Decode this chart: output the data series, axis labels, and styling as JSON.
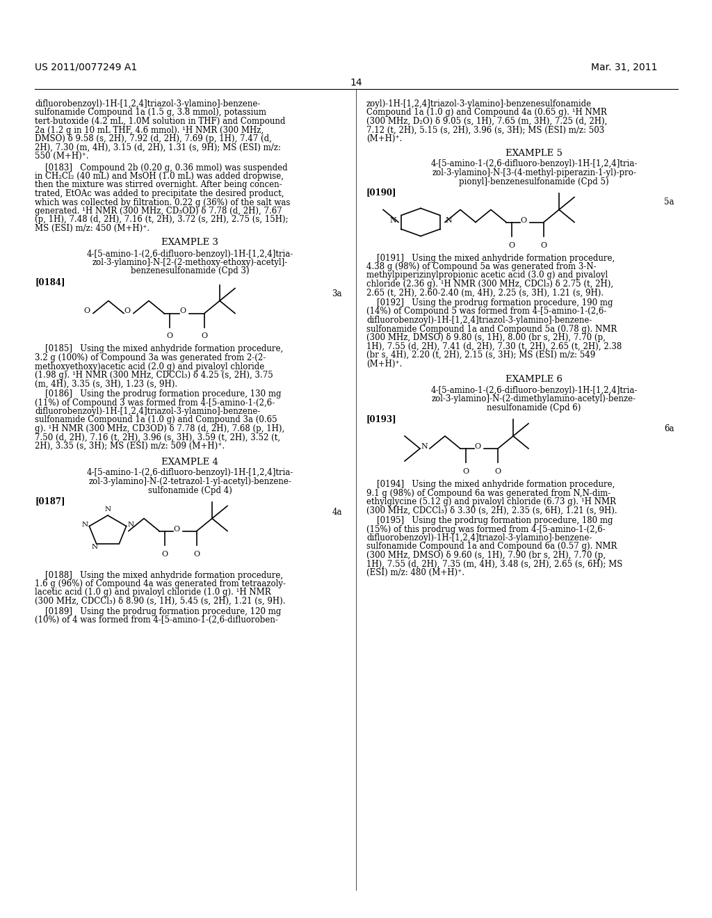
{
  "page_number": "14",
  "header_left": "US 2011/0077249 A1",
  "header_right": "Mar. 31, 2011",
  "background_color": "#ffffff",
  "text_color": "#000000"
}
